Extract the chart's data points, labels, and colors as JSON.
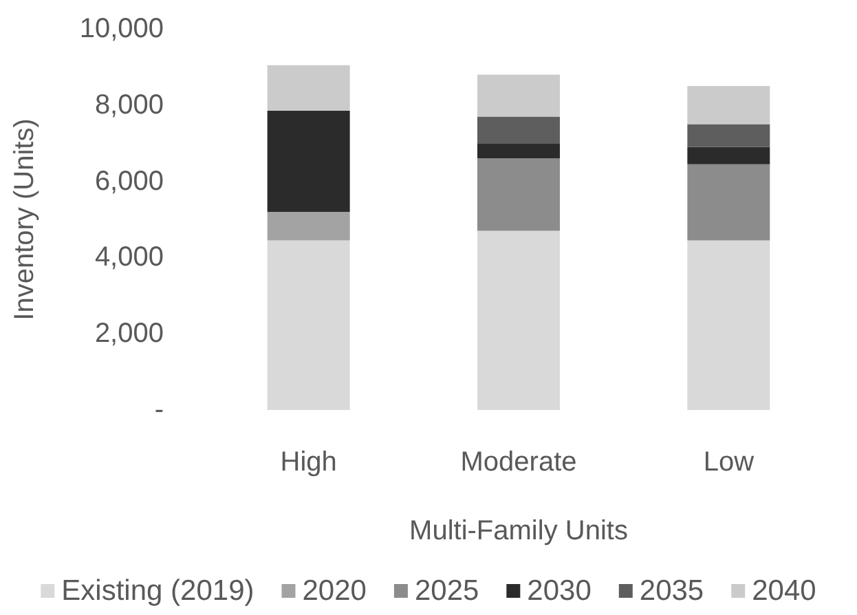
{
  "chart_data": {
    "type": "bar",
    "stacked": true,
    "xlabel": "Multi-Family Units",
    "ylabel": "Inventory (Units)",
    "categories": [
      "High",
      "Moderate",
      "Low"
    ],
    "series": [
      {
        "name": "Existing (2019)",
        "color": "#d9d9d9",
        "values": [
          4450,
          4700,
          4450
        ]
      },
      {
        "name": "2020",
        "color": "#a3a3a3",
        "values": [
          750,
          0,
          0
        ]
      },
      {
        "name": "2025",
        "color": "#8c8c8c",
        "values": [
          0,
          1900,
          2000
        ]
      },
      {
        "name": "2030",
        "color": "#2b2b2b",
        "values": [
          2650,
          400,
          450
        ]
      },
      {
        "name": "2035",
        "color": "#5e5e5e",
        "values": [
          0,
          700,
          600
        ]
      },
      {
        "name": "2040",
        "color": "#cbcbcb",
        "values": [
          1200,
          1100,
          1000
        ]
      }
    ],
    "ylim": [
      0,
      10000
    ],
    "yticks": [
      {
        "value": 0,
        "label": "-"
      },
      {
        "value": 2000,
        "label": "2,000"
      },
      {
        "value": 4000,
        "label": "4,000"
      },
      {
        "value": 6000,
        "label": "6,000"
      },
      {
        "value": 8000,
        "label": "8,000"
      },
      {
        "value": 10000,
        "label": "10,000"
      }
    ],
    "grid": false,
    "legend": "bottom"
  }
}
